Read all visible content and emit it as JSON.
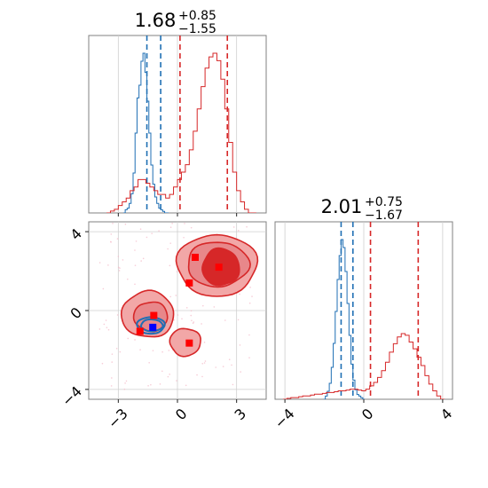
{
  "colors": {
    "red": "#d62728",
    "blue": "#1f6fb4",
    "red_fill": "#f2a7a7",
    "red_fill_mid": "#e8878a",
    "red_fill_core": "#d62728",
    "frame": "#808080",
    "grid": "#cfcfcf"
  },
  "chart_data": [
    {
      "type": "histogram",
      "panel": "top-left marginal (parameter 1)",
      "title": {
        "value": "1.68",
        "upper": "+0.85",
        "lower": "−1.55"
      },
      "xlim": [
        -4.5,
        4.5
      ],
      "grid": true,
      "series": [
        {
          "color": "#1f6fb4",
          "dashed_lines_x": [
            -1.55,
            -0.85
          ],
          "bins_x": [
            -2.7,
            -2.6,
            -2.5,
            -2.4,
            -2.3,
            -2.2,
            -2.1,
            -2.0,
            -1.9,
            -1.8,
            -1.7,
            -1.6,
            -1.5,
            -1.4,
            -1.3,
            -1.2,
            -1.1,
            -1.0,
            -0.9,
            -0.8,
            -0.7,
            -0.6,
            -0.5
          ],
          "values": [
            0.0,
            0.02,
            0.03,
            0.06,
            0.12,
            0.25,
            0.5,
            0.72,
            0.8,
            0.95,
            1.0,
            0.88,
            0.7,
            0.5,
            0.3,
            0.18,
            0.1,
            0.06,
            0.03,
            0.02,
            0.01,
            0.0,
            0.0
          ]
        },
        {
          "color": "#d62728",
          "dashed_lines_x": [
            0.13,
            2.53
          ],
          "bins_x": [
            -3.5,
            -3.3,
            -3.1,
            -2.9,
            -2.7,
            -2.5,
            -2.3,
            -2.1,
            -1.9,
            -1.7,
            -1.5,
            -1.3,
            -1.1,
            -0.9,
            -0.7,
            -0.5,
            -0.3,
            -0.1,
            0.1,
            0.3,
            0.5,
            0.7,
            0.9,
            1.1,
            1.3,
            1.5,
            1.7,
            1.9,
            2.1,
            2.3,
            2.5,
            2.7,
            2.9,
            3.1,
            3.3,
            3.5,
            3.7,
            3.9
          ],
          "values": [
            0.0,
            0.005,
            0.01,
            0.02,
            0.03,
            0.04,
            0.06,
            0.07,
            0.09,
            0.09,
            0.08,
            0.07,
            0.06,
            0.05,
            0.05,
            0.04,
            0.05,
            0.07,
            0.09,
            0.11,
            0.13,
            0.17,
            0.22,
            0.28,
            0.34,
            0.39,
            0.42,
            0.43,
            0.41,
            0.36,
            0.28,
            0.19,
            0.11,
            0.06,
            0.03,
            0.01,
            0.0,
            0.0
          ]
        }
      ]
    },
    {
      "type": "histogram",
      "panel": "bottom-right marginal (parameter 2)",
      "title": {
        "value": "2.01",
        "upper": "+0.75",
        "lower": "−1.67"
      },
      "xlim": [
        -4.5,
        4.5
      ],
      "xticks": [
        -4,
        0,
        4
      ],
      "xtick_labels": [
        "−4",
        "0",
        "4"
      ],
      "grid": true,
      "series": [
        {
          "color": "#1f6fb4",
          "dashed_lines_x": [
            -1.15,
            -0.55
          ],
          "bins_x": [
            -2.0,
            -1.9,
            -1.8,
            -1.7,
            -1.6,
            -1.5,
            -1.4,
            -1.3,
            -1.2,
            -1.1,
            -1.0,
            -0.9,
            -0.8,
            -0.7,
            -0.6,
            -0.5,
            -0.4,
            -0.3,
            -0.2,
            -0.1,
            0.0
          ],
          "values": [
            0.0,
            0.02,
            0.05,
            0.1,
            0.2,
            0.35,
            0.55,
            0.75,
            0.9,
            1.0,
            0.95,
            0.8,
            0.6,
            0.4,
            0.22,
            0.12,
            0.06,
            0.03,
            0.02,
            0.01,
            0.0
          ]
        },
        {
          "color": "#d62728",
          "dashed_lines_x": [
            0.34,
            2.76
          ],
          "bins_x": [
            -4.0,
            -3.8,
            -3.6,
            -3.4,
            -3.2,
            -3.0,
            -2.8,
            -2.6,
            -2.4,
            -2.2,
            -2.0,
            -1.8,
            -1.6,
            -1.4,
            -1.2,
            -1.0,
            -0.8,
            -0.6,
            -0.4,
            -0.2,
            0.0,
            0.2,
            0.4,
            0.6,
            0.8,
            1.0,
            1.2,
            1.4,
            1.6,
            1.8,
            2.0,
            2.2,
            2.4,
            2.6,
            2.8,
            3.0,
            3.2,
            3.4,
            3.6,
            3.8,
            4.0
          ],
          "values": [
            0.0,
            0.005,
            0.01,
            0.01,
            0.015,
            0.02,
            0.02,
            0.025,
            0.03,
            0.03,
            0.035,
            0.04,
            0.04,
            0.045,
            0.05,
            0.05,
            0.055,
            0.06,
            0.06,
            0.055,
            0.05,
            0.06,
            0.08,
            0.1,
            0.13,
            0.17,
            0.22,
            0.28,
            0.33,
            0.37,
            0.39,
            0.38,
            0.34,
            0.3,
            0.25,
            0.2,
            0.14,
            0.09,
            0.05,
            0.02,
            0.0
          ]
        }
      ]
    },
    {
      "type": "scatter",
      "panel": "bottom-left 2D joint density",
      "xlim": [
        -4.5,
        4.5
      ],
      "ylim": [
        -4.5,
        4.5
      ],
      "xticks": [
        -3,
        0,
        3
      ],
      "xtick_labels": [
        "−3",
        "0",
        "3"
      ],
      "yticks": [
        -4,
        0,
        4
      ],
      "ytick_labels": [
        "−4",
        "0",
        "4"
      ],
      "grid": true,
      "red_contours": [
        {
          "level": "outer",
          "center": [
            2.0,
            2.3
          ],
          "rx": 2.6,
          "ry": 2.0
        },
        {
          "level": "mid",
          "center": [
            2.05,
            2.35
          ],
          "rx": 2.0,
          "ry": 1.45
        },
        {
          "level": "core",
          "center": [
            2.2,
            2.2
          ],
          "rx": 1.2,
          "ry": 1.2
        },
        {
          "level": "outer",
          "center": [
            -1.5,
            -0.2
          ],
          "rx": 1.7,
          "ry": 1.5
        },
        {
          "level": "mid",
          "center": [
            -1.35,
            -0.3
          ],
          "rx": 1.1,
          "ry": 0.95
        },
        {
          "level": "outer",
          "center": [
            0.4,
            -1.6
          ],
          "rx": 1.0,
          "ry": 0.9
        }
      ],
      "blue_contours": [
        {
          "center": [
            -1.35,
            -0.75
          ],
          "rx": 0.7,
          "ry": 0.42
        },
        {
          "center": [
            -1.3,
            -0.75
          ],
          "rx": 0.55,
          "ry": 0.3
        }
      ],
      "red_points": [
        {
          "x": 0.9,
          "y": 2.7
        },
        {
          "x": 2.1,
          "y": 2.2
        },
        {
          "x": 0.6,
          "y": 1.4
        },
        {
          "x": -1.2,
          "y": -0.25
        },
        {
          "x": -1.9,
          "y": -1.05
        },
        {
          "x": 0.6,
          "y": -1.65
        }
      ],
      "blue_points": [
        {
          "x": -1.25,
          "y": -0.85
        }
      ]
    }
  ]
}
